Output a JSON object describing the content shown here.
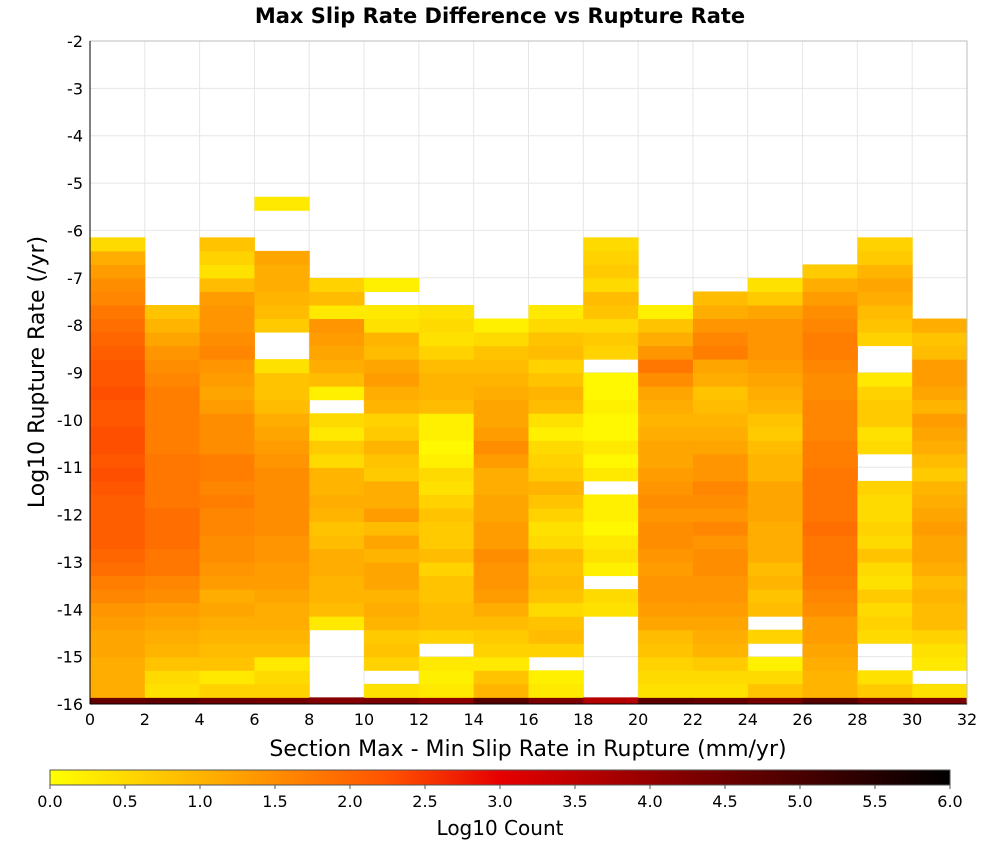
{
  "chart_data": {
    "type": "heatmap",
    "title": "Max Slip Rate Difference vs Rupture Rate",
    "xlabel": "Section Max - Min Slip Rate in Rupture (mm/yr)",
    "ylabel": "Log10 Rupture Rate (/yr)",
    "xlim": [
      0,
      32
    ],
    "ylim": [
      -16,
      -2
    ],
    "x_ticks": [
      "0",
      "2",
      "4",
      "6",
      "8",
      "10",
      "12",
      "14",
      "16",
      "18",
      "20",
      "22",
      "24",
      "26",
      "28",
      "30",
      "32"
    ],
    "y_ticks": [
      "-2",
      "-3",
      "-4",
      "-5",
      "-6",
      "-7",
      "-8",
      "-9",
      "-10",
      "-11",
      "-12",
      "-13",
      "-14",
      "-15",
      "-16"
    ],
    "x_bin_width": 2,
    "y_bin_height": 0.2857,
    "y_bin_bottom": -15.86,
    "grid": true,
    "colorbar": {
      "label": "Log10 Count",
      "min": 0.0,
      "max": 6.0,
      "ticks": [
        "0.0",
        "0.5",
        "1.0",
        "1.5",
        "2.0",
        "2.5",
        "3.0",
        "3.5",
        "4.0",
        "4.5",
        "5.0",
        "5.5",
        "6.0"
      ],
      "colors": [
        "#ffff00",
        "#ffa500",
        "#ff5000",
        "#e60000",
        "#7a0000",
        "#000000"
      ]
    },
    "columns": [
      {
        "x": "0-2",
        "values": [
          1.1,
          1.1,
          1.1,
          1.2,
          1.2,
          1.3,
          1.4,
          1.6,
          1.7,
          1.9,
          2.0,
          2.1,
          2.1,
          2.1,
          2.1,
          2.2,
          2.3,
          2.2,
          2.3,
          2.3,
          2.2,
          2.2,
          2.3,
          2.2,
          2.2,
          2.1,
          2.0,
          1.9,
          1.8,
          1.6,
          1.5,
          1.3,
          1.1,
          0.5
        ],
        "bottom": [
          4.6
        ]
      },
      {
        "x": "2-4",
        "values": [
          0.4,
          0.5,
          0.8,
          1.0,
          1.1,
          1.2,
          1.3,
          1.5,
          1.6,
          1.8,
          1.8,
          1.9,
          1.9,
          1.9,
          1.8,
          1.8,
          1.8,
          1.8,
          1.7,
          1.7,
          1.7,
          1.7,
          1.7,
          1.6,
          1.5,
          1.4,
          1.2,
          1.0,
          0.8
        ],
        "bottom": [
          4.7
        ]
      },
      {
        "x": "4-6",
        "values": [
          0.6,
          0.3,
          0.8,
          0.9,
          1.0,
          1.1,
          1.2,
          1.1,
          1.3,
          1.4,
          1.5,
          1.5,
          1.6,
          1.6,
          1.7,
          1.6,
          1.7,
          1.7,
          1.5,
          1.5,
          1.5,
          1.3,
          1.2,
          1.3,
          1.4,
          1.6,
          1.5,
          1.4,
          1.4,
          1.3,
          0.9,
          0.4,
          0.6,
          0.8
        ],
        "bottom": [
          4.5
        ]
      },
      {
        "x": "6-8",
        "values": [
          0.6,
          0.5,
          0.3,
          0.9,
          1.0,
          1.1,
          1.1,
          1.2,
          1.3,
          1.3,
          1.4,
          1.4,
          1.5,
          1.5,
          1.5,
          1.5,
          1.5,
          1.4,
          1.3,
          1.2,
          1.1,
          0.9,
          0.8,
          0.8,
          0.4,
          null,
          null,
          0.7,
          0.9,
          1.0,
          1.1,
          1.1,
          1.2,
          null,
          null,
          null,
          0.3
        ],
        "bottom": [
          4.4
        ]
      },
      {
        "x": "8-10",
        "values": [
          null,
          null,
          null,
          null,
          null,
          0.3,
          0.9,
          1.0,
          1.0,
          1.1,
          1.1,
          0.9,
          0.8,
          1.0,
          1.1,
          1.0,
          1.0,
          0.5,
          0.7,
          0.3,
          0.5,
          null,
          0.2,
          0.9,
          1.1,
          1.2,
          1.3,
          1.4,
          0.3,
          0.9,
          0.6
        ],
        "bottom": [
          4.2
        ]
      },
      {
        "x": "10-12",
        "values": [
          0.4,
          null,
          0.6,
          0.8,
          0.7,
          1.0,
          1.1,
          1.0,
          1.2,
          1.2,
          1.0,
          1.2,
          0.9,
          1.3,
          1.1,
          1.1,
          0.7,
          0.8,
          1.0,
          0.7,
          0.6,
          1.0,
          1.1,
          1.3,
          1.2,
          0.9,
          1.0,
          0.4,
          0.3,
          null,
          0.2
        ],
        "bottom": [
          4.3
        ]
      },
      {
        "x": "12-14",
        "values": [
          0.3,
          0.2,
          0.3,
          null,
          0.6,
          0.9,
          0.9,
          0.8,
          0.8,
          0.6,
          0.9,
          0.7,
          0.7,
          0.8,
          0.6,
          0.4,
          0.5,
          0.2,
          0.1,
          0.2,
          0.2,
          0.9,
          1.0,
          1.0,
          0.9,
          0.6,
          0.4,
          0.5,
          0.4
        ],
        "bottom": [
          4.1
        ]
      },
      {
        "x": "14-16",
        "values": [
          1.0,
          0.8,
          0.3,
          0.6,
          0.7,
          0.9,
          1.1,
          1.3,
          1.4,
          1.4,
          1.5,
          1.3,
          1.3,
          1.2,
          1.2,
          1.1,
          1.1,
          1.3,
          1.5,
          1.3,
          1.2,
          1.2,
          1.1,
          1.0,
          0.9,
          0.8,
          0.5,
          0.2
        ],
        "bottom": [
          4.8
        ]
      },
      {
        "x": "16-18",
        "values": [
          0.3,
          0.2,
          null,
          0.6,
          0.9,
          0.8,
          0.5,
          0.8,
          0.9,
          0.8,
          0.9,
          0.5,
          0.4,
          0.6,
          0.8,
          1.0,
          0.7,
          0.6,
          0.5,
          0.2,
          0.4,
          0.9,
          1.0,
          0.8,
          0.6,
          0.9,
          0.8,
          0.5,
          0.3
        ],
        "bottom": [
          4.3
        ]
      },
      {
        "x": "18-20",
        "values": [
          null,
          null,
          null,
          null,
          null,
          null,
          0.4,
          0.5,
          null,
          0.2,
          0.4,
          0.3,
          0.1,
          0.2,
          0.2,
          null,
          0.3,
          0.1,
          0.3,
          0.1,
          0.1,
          0.2,
          0.1,
          0.1,
          null,
          0.6,
          0.7,
          0.5,
          0.8,
          0.9,
          0.5,
          0.7,
          0.6,
          0.5
        ],
        "bottom": [
          3.6
        ]
      },
      {
        "x": "20-22",
        "values": [
          0.4,
          0.5,
          0.6,
          0.8,
          0.9,
          1.2,
          1.3,
          1.4,
          1.4,
          1.3,
          1.4,
          1.5,
          1.5,
          1.4,
          1.5,
          1.4,
          1.3,
          1.2,
          1.2,
          1.1,
          1.0,
          1.1,
          1.2,
          1.5,
          1.8,
          1.4,
          1.1,
          0.8,
          0.2
        ],
        "bottom": [
          4.7
        ]
      },
      {
        "x": "22-24",
        "values": [
          0.4,
          0.5,
          0.7,
          1.0,
          1.1,
          1.2,
          1.3,
          1.4,
          1.4,
          1.5,
          1.5,
          1.4,
          1.6,
          1.4,
          1.5,
          1.6,
          1.4,
          1.4,
          1.2,
          1.1,
          1.0,
          0.9,
          0.8,
          1.1,
          1.2,
          1.7,
          1.6,
          1.4,
          1.1,
          0.9
        ],
        "bottom": [
          4.6
        ]
      },
      {
        "x": "24-26",
        "values": [
          0.8,
          0.5,
          0.2,
          null,
          0.6,
          null,
          0.9,
          0.8,
          1.0,
          0.9,
          1.1,
          1.1,
          1.1,
          1.2,
          1.2,
          1.2,
          1.0,
          1.0,
          0.9,
          0.7,
          0.8,
          1.0,
          1.1,
          1.2,
          1.3,
          1.4,
          1.4,
          1.4,
          1.2,
          0.7,
          0.4
        ],
        "bottom": [
          4.4
        ]
      },
      {
        "x": "26-28",
        "values": [
          1.0,
          1.0,
          1.1,
          1.2,
          1.3,
          1.3,
          1.5,
          1.6,
          1.7,
          1.8,
          1.8,
          1.8,
          1.9,
          1.8,
          1.8,
          1.8,
          1.8,
          1.7,
          1.7,
          1.6,
          1.6,
          1.6,
          1.5,
          1.5,
          1.6,
          1.7,
          1.7,
          1.6,
          1.5,
          1.3,
          1.1,
          0.7
        ],
        "bottom": [
          4.8
        ]
      },
      {
        "x": "28-30",
        "values": [
          0.7,
          0.4,
          null,
          null,
          0.5,
          0.6,
          0.5,
          0.7,
          0.4,
          0.5,
          0.8,
          0.5,
          0.6,
          0.5,
          0.5,
          0.6,
          null,
          null,
          0.5,
          0.4,
          0.7,
          0.7,
          0.6,
          0.3,
          null,
          null,
          0.6,
          0.8,
          0.9,
          1.1,
          1.2,
          1.0,
          0.7,
          0.6
        ],
        "bottom": [
          4.4
        ]
      },
      {
        "x": "30-32",
        "values": [
          0.4,
          null,
          0.3,
          0.4,
          0.6,
          0.9,
          0.9,
          1.0,
          0.9,
          1.1,
          1.2,
          1.2,
          1.3,
          1.2,
          1.1,
          1.0,
          0.7,
          0.9,
          1.1,
          1.2,
          1.3,
          1.0,
          1.2,
          1.3,
          1.3,
          0.9,
          0.8,
          1.1
        ],
        "bottom": [
          4.3
        ]
      }
    ]
  }
}
